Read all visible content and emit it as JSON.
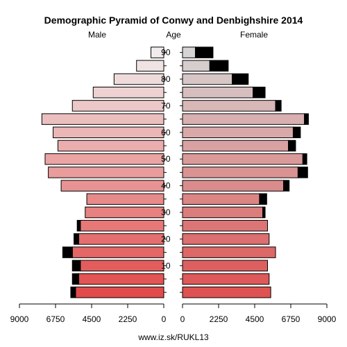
{
  "chart_data": {
    "type": "bar",
    "title": "Demographic Pyramid of Conwy and Denbighshire 2014",
    "left_label": "Male",
    "center_label": "Age",
    "right_label": "Female",
    "footer": "www.iz.sk/RUKL13",
    "age_groups": [
      "0-4",
      "5-9",
      "10-14",
      "15-19",
      "20-24",
      "25-29",
      "30-34",
      "35-39",
      "40-44",
      "45-49",
      "50-54",
      "55-59",
      "60-64",
      "65-69",
      "70-74",
      "75-79",
      "80-84",
      "85-89",
      "90+"
    ],
    "age_tick_labels": [
      "10",
      "20",
      "30",
      "40",
      "50",
      "60",
      "70",
      "80",
      "90"
    ],
    "age_tick_values": [
      10,
      20,
      30,
      40,
      50,
      60,
      70,
      80,
      90
    ],
    "x_tick_labels_left": [
      "9000",
      "6750",
      "4500",
      "2250",
      "0"
    ],
    "x_tick_labels_right": [
      "0",
      "2250",
      "4500",
      "6750",
      "9000"
    ],
    "x_tick_values": [
      9000,
      6750,
      4500,
      2250,
      0
    ],
    "xlim": [
      0,
      9000
    ],
    "series": [
      {
        "name": "Male",
        "side": "left",
        "values": [
          5500,
          5300,
          5200,
          5700,
          5300,
          5200,
          4900,
          4800,
          6400,
          7200,
          7400,
          6600,
          6900,
          7600,
          5700,
          4400,
          3100,
          1700,
          800
        ],
        "excess": [
          300,
          400,
          500,
          600,
          300,
          200,
          0,
          0,
          0,
          0,
          0,
          0,
          0,
          0,
          0,
          0,
          0,
          0,
          0
        ]
      },
      {
        "name": "Female",
        "side": "right",
        "values": [
          5500,
          5400,
          5300,
          5800,
          5400,
          5300,
          5000,
          4800,
          6300,
          7200,
          7500,
          6600,
          6900,
          7600,
          5800,
          4400,
          3100,
          1700,
          800
        ],
        "excess": [
          0,
          0,
          0,
          0,
          0,
          0,
          150,
          450,
          350,
          600,
          250,
          450,
          450,
          250,
          350,
          750,
          1000,
          1150,
          1100
        ]
      }
    ]
  }
}
